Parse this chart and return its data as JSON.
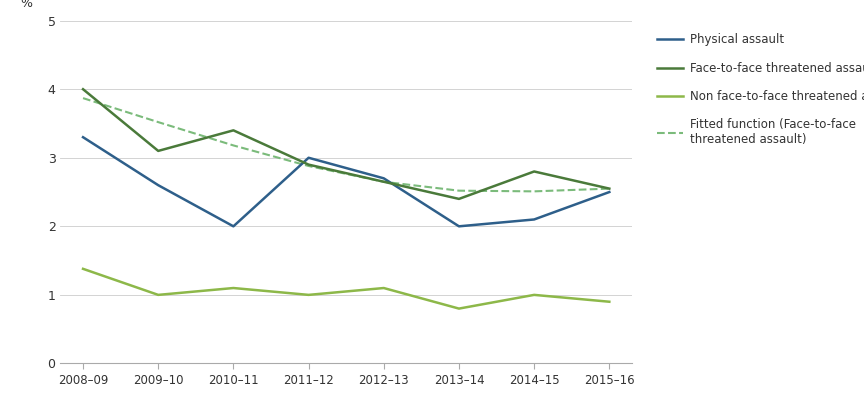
{
  "x_labels": [
    "2008–09",
    "2009–10",
    "2010–11",
    "2011–12",
    "2012–13",
    "2013–14",
    "2014–15",
    "2015–16"
  ],
  "x_positions": [
    0,
    1,
    2,
    3,
    4,
    5,
    6,
    7
  ],
  "physical_assault": [
    3.3,
    2.6,
    2.0,
    3.0,
    2.7,
    2.0,
    2.1,
    2.5
  ],
  "face_to_face": [
    4.0,
    3.1,
    3.4,
    2.9,
    2.65,
    2.4,
    2.8,
    2.55
  ],
  "non_face_to_face": [
    1.38,
    1.0,
    1.1,
    1.0,
    1.1,
    0.8,
    1.0,
    0.9
  ],
  "fitted": [
    3.87,
    3.52,
    3.18,
    2.88,
    2.65,
    2.52,
    2.51,
    2.55
  ],
  "physical_assault_color": "#2E5F8A",
  "face_to_face_color": "#4A7A3A",
  "non_face_to_face_color": "#8DB849",
  "fitted_color": "#7BBB7B",
  "ylim": [
    0,
    5
  ],
  "yticks": [
    0,
    1,
    2,
    3,
    4,
    5
  ],
  "ylabel": "%",
  "legend_labels": [
    "Physical assault",
    "Face-to-face threatened assault",
    "Non face-to-face threatened assault",
    "Fitted function (Face-to-face\nthreatened assault)"
  ],
  "background_color": "#ffffff"
}
